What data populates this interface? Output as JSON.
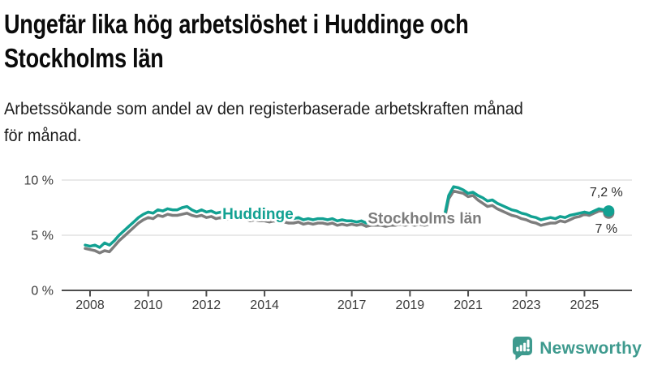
{
  "header": {
    "title_lines": [
      "Ungefär lika hög arbetslöshet i Huddinge och",
      "Stockholms län"
    ],
    "subtitle_lines": [
      "Arbetssökande som andel av den registerbaserade arbetskraften månad",
      "för månad."
    ]
  },
  "chart_data": {
    "type": "line",
    "title": "",
    "xlabel": "",
    "ylabel": "",
    "grid": "horizontal-gridlines-at-5-and-10",
    "legend_position": "inline-labels-on-lines",
    "x_start": 2007.8333,
    "x_step": 0.166667,
    "xlim": [
      2007,
      2026.6
    ],
    "ylim": [
      0,
      11.6
    ],
    "x_ticks": [
      2008,
      2010,
      2012,
      2014,
      2017,
      2019,
      2021,
      2023,
      2025
    ],
    "y_ticks": [
      {
        "value": 0,
        "label": "0 %"
      },
      {
        "value": 5,
        "label": "5 %"
      },
      {
        "value": 10,
        "label": "10 %"
      }
    ],
    "axis_color": "#4d4d4d",
    "gridline_color": "#dcdcdc",
    "tick_label_color": "#3a3a3a",
    "end_label_color": "#2e2e2e",
    "series": [
      {
        "name": "Stockholms län",
        "color": "#7d7d7d",
        "label_x": 2017.55,
        "label_y": 6.55,
        "end_label": "7 %",
        "end_label_position": "below",
        "values": [
          3.8,
          3.7,
          3.6,
          3.4,
          3.6,
          3.5,
          4.0,
          4.5,
          4.9,
          5.3,
          5.7,
          6.1,
          6.4,
          6.6,
          6.5,
          6.8,
          6.7,
          6.9,
          6.8,
          6.8,
          6.9,
          7.0,
          6.8,
          6.7,
          6.8,
          6.6,
          6.7,
          6.5,
          6.6,
          6.4,
          6.6,
          6.5,
          6.4,
          6.5,
          6.3,
          6.4,
          6.3,
          6.3,
          6.2,
          6.3,
          6.1,
          6.2,
          6.1,
          6.1,
          6.2,
          6.0,
          6.1,
          6.0,
          6.1,
          6.1,
          6.0,
          6.1,
          5.9,
          6.0,
          5.9,
          6.0,
          5.9,
          6.0,
          5.8,
          5.9,
          5.9,
          5.9,
          5.8,
          5.9,
          5.9,
          6.0,
          5.9,
          6.0,
          5.9,
          6.0,
          5.9,
          6.0,
          6.0,
          6.0,
          6.2,
          8.3,
          9.0,
          8.9,
          8.8,
          8.5,
          8.6,
          8.2,
          7.9,
          7.6,
          7.7,
          7.4,
          7.2,
          7.0,
          6.8,
          6.7,
          6.5,
          6.4,
          6.2,
          6.1,
          5.9,
          6.0,
          6.1,
          6.1,
          6.3,
          6.2,
          6.4,
          6.6,
          6.7,
          6.9,
          6.8,
          7.0,
          7.2,
          7.2,
          7.0
        ]
      },
      {
        "name": "Huddinge",
        "color": "#12a192",
        "label_x": 2012.55,
        "label_y": 6.95,
        "end_label": "7,2 %",
        "end_label_position": "above",
        "values": [
          4.1,
          4.0,
          4.1,
          3.9,
          4.3,
          4.1,
          4.5,
          5.0,
          5.4,
          5.8,
          6.2,
          6.6,
          6.9,
          7.1,
          7.0,
          7.3,
          7.2,
          7.4,
          7.3,
          7.3,
          7.5,
          7.6,
          7.3,
          7.1,
          7.3,
          7.1,
          7.2,
          7.0,
          7.1,
          6.9,
          7.1,
          7.0,
          6.9,
          7.0,
          6.8,
          6.9,
          6.8,
          6.8,
          6.7,
          6.8,
          6.6,
          6.7,
          6.6,
          6.5,
          6.6,
          6.4,
          6.5,
          6.4,
          6.5,
          6.5,
          6.4,
          6.5,
          6.3,
          6.4,
          6.3,
          6.3,
          6.2,
          6.3,
          6.1,
          6.3,
          6.2,
          6.3,
          6.2,
          6.3,
          6.2,
          6.4,
          6.3,
          6.3,
          6.2,
          6.3,
          6.2,
          6.3,
          6.3,
          6.3,
          6.5,
          8.6,
          9.4,
          9.3,
          9.1,
          8.8,
          8.9,
          8.6,
          8.4,
          8.1,
          8.2,
          7.9,
          7.7,
          7.5,
          7.3,
          7.2,
          7.0,
          6.9,
          6.7,
          6.6,
          6.4,
          6.5,
          6.6,
          6.5,
          6.7,
          6.6,
          6.8,
          6.9,
          7.0,
          7.1,
          7.0,
          7.2,
          7.4,
          7.3,
          7.2
        ]
      }
    ]
  },
  "footer": {
    "brand": "Newsworthy",
    "brand_color": "#3e9a8e",
    "logo_icon": "newsworthy-bar-chart-exclamation-icon"
  }
}
